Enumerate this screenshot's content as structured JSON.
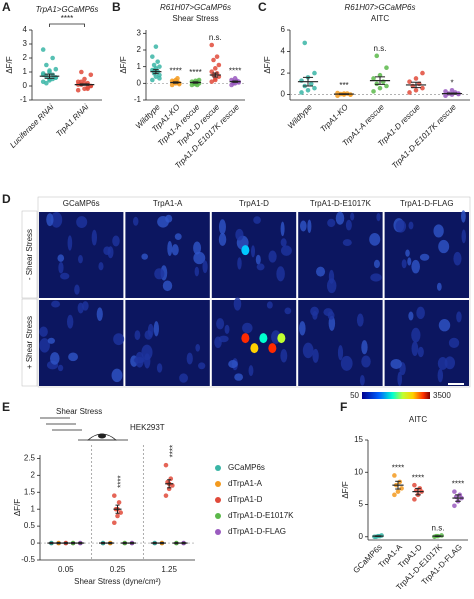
{
  "chart_data": [
    {
      "type": "strip",
      "panel": "A",
      "title": "TrpA1>GCaMP6s",
      "ylabel": "ΔF/F",
      "categories": [
        "Luciferase RNAi",
        "TrpA1 RNAi"
      ],
      "colors": [
        "#3ab5a6",
        "#e04a3a"
      ],
      "points": [
        [
          0.3,
          0.5,
          0.6,
          0.7,
          0.8,
          0.9,
          1.0,
          1.2,
          1.5,
          2.0,
          2.6,
          0.4,
          0.6,
          0.2,
          0.5,
          0.8,
          1.1
        ],
        [
          -0.3,
          -0.2,
          0,
          0.1,
          0.2,
          0.3,
          0.5,
          0.8,
          1.0,
          -0.1,
          0.1,
          0.2,
          0,
          0.3,
          -0.2
        ]
      ],
      "means": [
        0.7,
        0.1
      ],
      "sems": [
        0.15,
        0.05
      ],
      "bracket_label": "****",
      "ylim": [
        -1,
        4
      ],
      "yticks": [
        -1,
        0,
        1,
        2,
        3,
        4
      ]
    },
    {
      "type": "strip",
      "panel": "B",
      "title": "R61H07>GCaMP6s",
      "subtitle": "Shear Stress",
      "ylabel": "ΔF/F",
      "categories": [
        "Wildtype",
        "TrpA1-KO",
        "TrpA1-A rescue",
        "TrpA1-D rescue",
        "TrpA1-D-E1017K rescue"
      ],
      "colors": [
        "#3ab5a6",
        "#f39a1e",
        "#5bb84a",
        "#e04a3a",
        "#9a5bbf"
      ],
      "points": [
        [
          0.2,
          0.4,
          0.5,
          0.6,
          0.7,
          0.8,
          0.9,
          1.0,
          1.1,
          1.3,
          1.6,
          2.2,
          0.3,
          0.8
        ],
        [
          -0.1,
          0,
          0,
          0.05,
          0.1,
          0.15,
          0.2,
          -0.05,
          0.1,
          0.3
        ],
        [
          -0.1,
          -0.05,
          0,
          0.05,
          0.1,
          0.1,
          0.15,
          0.2,
          0,
          -0.1
        ],
        [
          0.1,
          0.3,
          0.4,
          0.5,
          0.6,
          0.7,
          0.9,
          1.1,
          1.4,
          1.6,
          2.3,
          0.2
        ],
        [
          -0.1,
          0,
          0.05,
          0.1,
          0.15,
          0.2,
          0.3,
          0.1,
          0
        ]
      ],
      "means": [
        0.7,
        0.05,
        0.05,
        0.5,
        0.1
      ],
      "sems": [
        0.12,
        0.04,
        0.04,
        0.12,
        0.04
      ],
      "annotations": [
        null,
        "****",
        "****",
        "n.s.",
        "****"
      ],
      "zero_line": true,
      "ylim": [
        -1,
        3.2
      ],
      "yticks": [
        -1,
        0,
        1,
        2,
        3
      ]
    },
    {
      "type": "strip",
      "panel": "C",
      "title": "R61H07>GCaMP6s",
      "subtitle": "AITC",
      "ylabel": "ΔF/F",
      "categories": [
        "Wildtype",
        "TrpA1-KO",
        "TrpA1-A rescue",
        "TrpA1-D rescue",
        "TrpA1-D-E1017K rescue"
      ],
      "colors": [
        "#3ab5a6",
        "#f39a1e",
        "#5bb84a",
        "#e04a3a",
        "#9a5bbf"
      ],
      "points": [
        [
          0.2,
          0.4,
          0.6,
          0.8,
          1.0,
          1.3,
          1.6,
          2.0,
          4.8
        ],
        [
          -0.1,
          0,
          0,
          0.05,
          0.1,
          0.15,
          0.1,
          0
        ],
        [
          0.3,
          0.6,
          0.8,
          1.0,
          1.2,
          1.5,
          1.8,
          2.5,
          3.6
        ],
        [
          0.2,
          0.4,
          0.6,
          0.8,
          1.0,
          1.2,
          1.5,
          2.0
        ],
        [
          -0.1,
          0,
          0.05,
          0.1,
          0.2,
          0.3,
          0.4,
          0.1
        ]
      ],
      "means": [
        1.2,
        0.05,
        1.3,
        0.9,
        0.1
      ],
      "sems": [
        0.4,
        0.03,
        0.35,
        0.25,
        0.05
      ],
      "annotations": [
        null,
        "***",
        "n.s.",
        null,
        "*"
      ],
      "zero_line": true,
      "ylim": [
        -0.5,
        6
      ],
      "yticks": [
        0,
        2,
        4,
        6
      ]
    },
    {
      "type": "image-grid",
      "panel": "D",
      "columns": [
        "GCaMP6s",
        "TrpA1-A",
        "TrpA1-D",
        "TrpA1-D-E1017K",
        "TrpA1-D-FLAG"
      ],
      "rows": [
        "- Shear Stress",
        "+ Shear Stress"
      ],
      "colorbar_ticks": [
        50,
        3500
      ]
    },
    {
      "type": "grouped-strip",
      "panel": "E",
      "annotations": [
        "Shear Stress",
        "HEK293T"
      ],
      "ylabel": "ΔF/F",
      "xlabel": "Shear Stress (dyne/cm²)",
      "categories": [
        "0.05",
        "0.25",
        "1.25"
      ],
      "series": [
        {
          "name": "GCaMP6s",
          "color": "#3ab5a6",
          "values": [
            0,
            0,
            0
          ],
          "sems": [
            0.02,
            0.02,
            0.02
          ]
        },
        {
          "name": "dTrpA1-A",
          "color": "#f39a1e",
          "values": [
            0,
            0,
            0
          ],
          "sems": [
            0.02,
            0.02,
            0.02
          ]
        },
        {
          "name": "dTrpA1-D",
          "color": "#e04a3a",
          "values": [
            0,
            1.0,
            1.75
          ],
          "sems": [
            0.02,
            0.12,
            0.12
          ],
          "points": [
            [],
            [
              0.6,
              0.8,
              0.9,
              1.0,
              1.2,
              1.4
            ],
            [
              1.4,
              1.6,
              1.7,
              1.8,
              1.9,
              2.3
            ]
          ]
        },
        {
          "name": "dTrpA1-D-E1017K",
          "color": "#5bb84a",
          "values": [
            0,
            0,
            0
          ],
          "sems": [
            0.02,
            0.02,
            0.02
          ]
        },
        {
          "name": "dTrpA1-D-FLAG",
          "color": "#9a5bbf",
          "values": [
            0,
            0,
            0
          ],
          "sems": [
            0.02,
            0.02,
            0.02
          ]
        }
      ],
      "significance": [
        null,
        "****",
        "****"
      ],
      "zero_line": true,
      "ylim": [
        -0.5,
        2.6
      ],
      "yticks": [
        -0.5,
        0,
        0.5,
        1,
        1.5,
        2,
        2.5
      ]
    },
    {
      "type": "strip",
      "panel": "F",
      "title": "AITC",
      "ylabel": "ΔF/F",
      "categories": [
        "GCaMP6s",
        "TrpA1-A",
        "TrpA1-D",
        "TrpA1-D-E1017K",
        "TrpA1-D-FLAG"
      ],
      "colors": [
        "#3ab5a6",
        "#f39a1e",
        "#e04a3a",
        "#5bb84a",
        "#9a5bbf"
      ],
      "points": [
        [
          0,
          0.1,
          0.2,
          0,
          0.1
        ],
        [
          6.5,
          7,
          7.5,
          8,
          8.5,
          9.5
        ],
        [
          5.8,
          6.5,
          7,
          7.2,
          7.5,
          8
        ],
        [
          0,
          0.1,
          0.2,
          0.1
        ],
        [
          4.8,
          5.5,
          6,
          6.2,
          6.5,
          7
        ]
      ],
      "means": [
        0.1,
        8,
        7,
        0.1,
        6
      ],
      "sems": [
        0.05,
        0.6,
        0.5,
        0.05,
        0.5
      ],
      "annotations": [
        null,
        "****",
        "****",
        "n.s.",
        "****"
      ],
      "ylim": [
        -0.5,
        15
      ],
      "yticks": [
        0,
        5,
        10,
        15
      ]
    }
  ]
}
